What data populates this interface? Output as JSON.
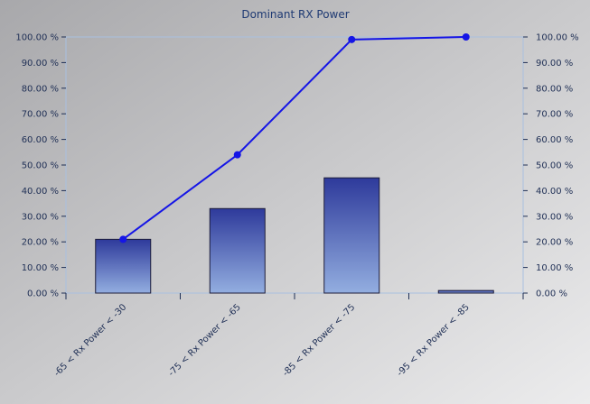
{
  "chart_data": {
    "type": "bar",
    "title": "Dominant RX Power",
    "categories": [
      "-65 < Rx Power < -30",
      "-75 < Rx Power < -65",
      "-85 < Rx Power < -75",
      "-95 < Rx Power < -85"
    ],
    "series": [
      {
        "type": "bar",
        "values": [
          21,
          33,
          45,
          1
        ]
      },
      {
        "type": "line",
        "values": [
          21,
          54,
          99,
          100
        ]
      }
    ],
    "ylim": [
      0,
      100
    ],
    "yticks": [
      "0.00 %",
      "10.00 %",
      "20.00 %",
      "30.00 %",
      "40.00 %",
      "50.00 %",
      "60.00 %",
      "70.00 %",
      "80.00 %",
      "90.00 %",
      "100.00 %"
    ],
    "grid": false,
    "colors": {
      "bar_top": "#2e3a9b",
      "bar_bottom": "#93aee0",
      "line": "#1515e6",
      "axis": "#a9c0e0"
    }
  }
}
